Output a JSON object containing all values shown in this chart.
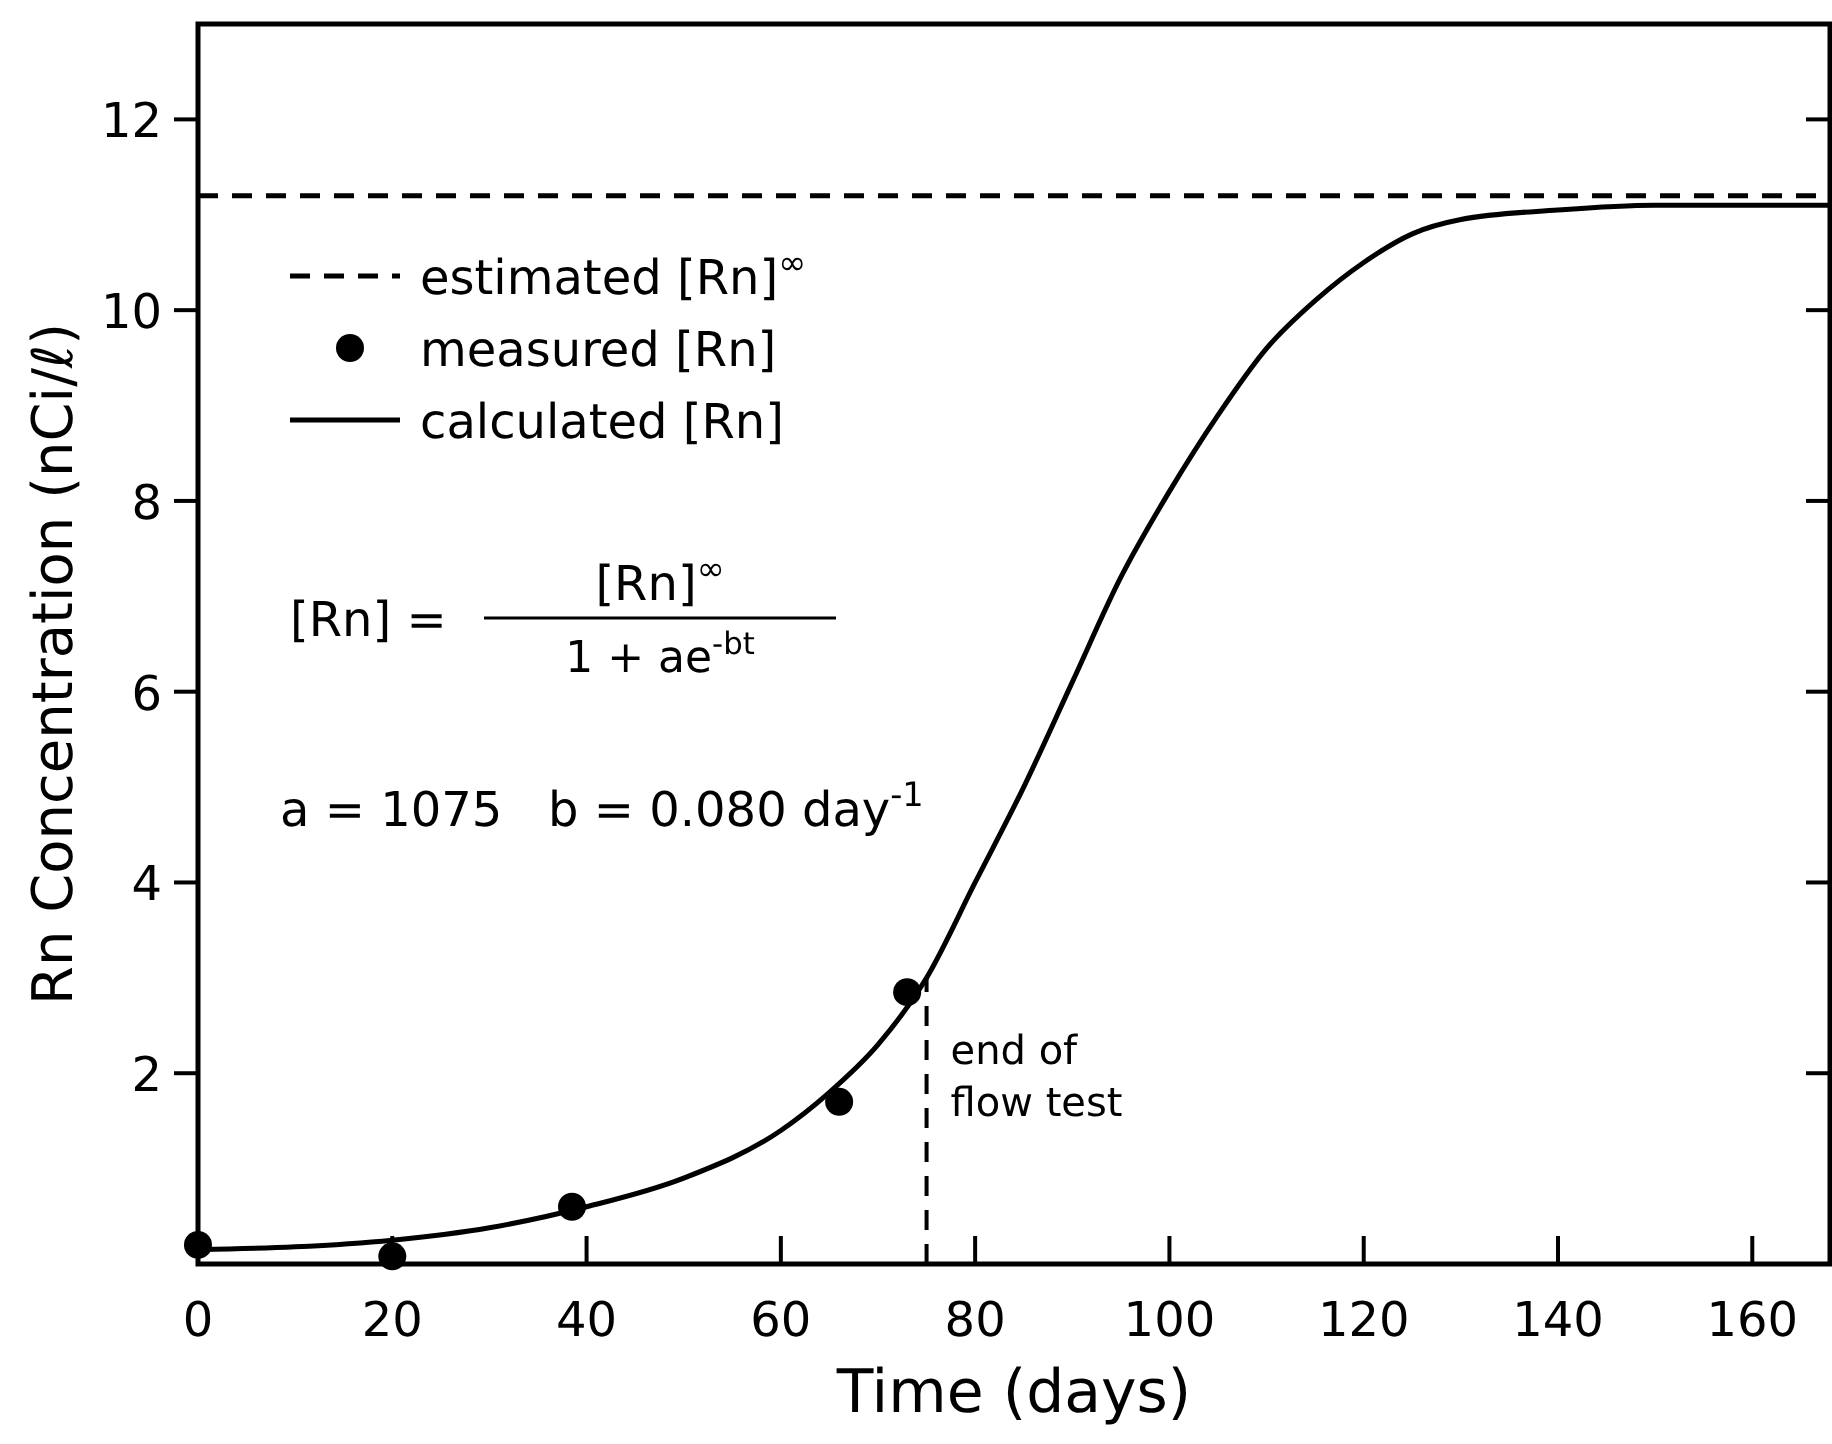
{
  "chart_data": {
    "type": "line",
    "xlabel": "Time (days)",
    "ylabel": "Rn Concentration (nCi/ℓ)",
    "xlim": [
      0,
      168
    ],
    "xticks": [
      0,
      20,
      40,
      60,
      80,
      100,
      120,
      140,
      160
    ],
    "ylim": [
      0,
      13
    ],
    "yticks": [
      2,
      4,
      6,
      8,
      10,
      12
    ],
    "grid": false,
    "legend": "top left",
    "series": [
      {
        "name": "estimated [Rn]$^{∞}$",
        "type": "line",
        "line_style": "dashed",
        "color": "#000000",
        "x": [
          0,
          168
        ],
        "values": [
          11.2,
          11.2
        ]
      },
      {
        "name": "measured [Rn]",
        "type": "scatter",
        "marker": "circle",
        "color": "#000000",
        "x": [
          0,
          20,
          38.5,
          66,
          73
        ],
        "values": [
          0.2,
          0.08,
          0.6,
          1.7,
          2.85
        ]
      },
      {
        "name": "calculated [Rn]",
        "line_style": "solid",
        "color": "#000000",
        "x": [
          0,
          10,
          20,
          30,
          40,
          50,
          60,
          65,
          70,
          75,
          80,
          85,
          90,
          95,
          100,
          105,
          110,
          115,
          120,
          125,
          130,
          140,
          150,
          168
        ],
        "values": [
          0.15,
          0.18,
          0.25,
          0.38,
          0.6,
          0.9,
          1.4,
          1.8,
          2.3,
          3.0,
          4.0,
          5.0,
          6.1,
          7.2,
          8.1,
          8.9,
          9.6,
          10.1,
          10.5,
          10.8,
          10.95,
          11.05,
          11.1,
          11.1
        ]
      }
    ],
    "ref_lines": [
      {
        "axis": "x",
        "value": 75,
        "label": "end of flow test",
        "line_style": "dashed",
        "color": "#000000"
      }
    ],
    "annotations": [
      "[Rn] =",
      "[Rn]$^{∞}$",
      "1 + ae$^{-bt}$",
      "a = 1075   b = 0.080 day$^{-1}$"
    ]
  }
}
